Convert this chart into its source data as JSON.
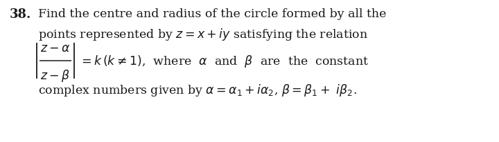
{
  "background_color": "#ffffff",
  "fig_width": 7.2,
  "fig_height": 2.07,
  "dpi": 100,
  "number": "38.",
  "line1": "Find the centre and radius of the circle formed by all the",
  "line2": "points represented by $z = x + iy$ satisfying the relation",
  "line4": "complex numbers given by $\\alpha = \\alpha_1 + i\\alpha_2$, $\\beta = \\beta_1 +\\ i\\beta_2$.",
  "font_size_number": 13,
  "font_size_text": 12.5,
  "text_color": "#1a1a1a"
}
